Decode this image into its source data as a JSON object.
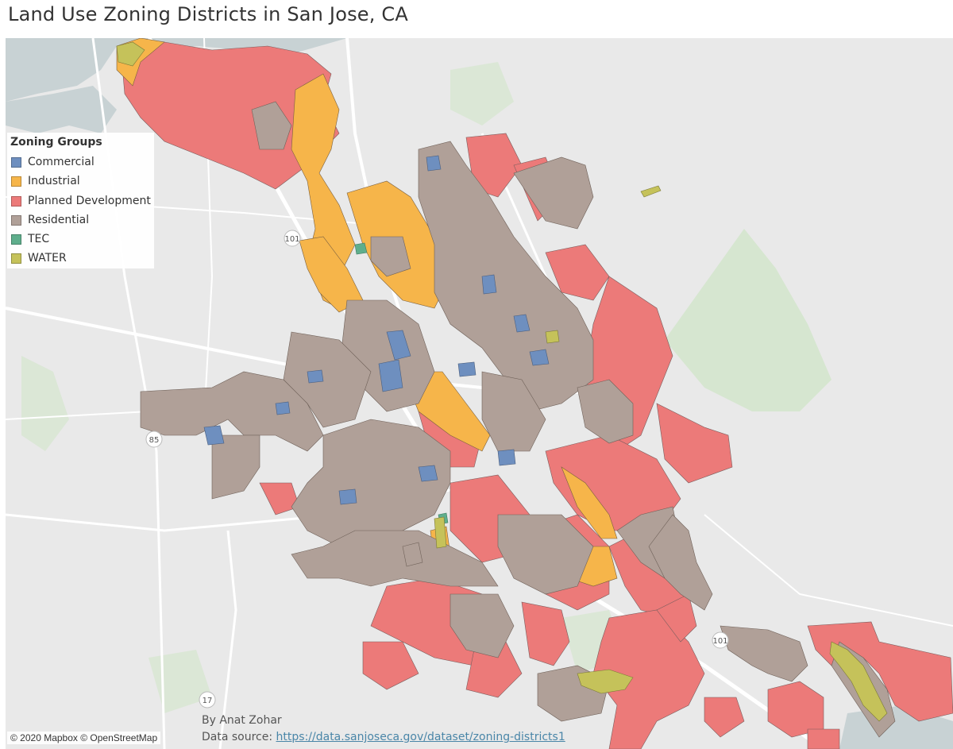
{
  "title": "Land Use Zoning Districts in San Jose, CA",
  "legend": {
    "title": "Zoning Groups",
    "items": [
      {
        "label": "Commercial",
        "color": "#6e8fbf"
      },
      {
        "label": "Industrial",
        "color": "#f6b54a"
      },
      {
        "label": "Planned Development",
        "color": "#ec7a79"
      },
      {
        "label": "Residential",
        "color": "#b0a098"
      },
      {
        "label": "TEC",
        "color": "#5fae8c"
      },
      {
        "label": "WATER",
        "color": "#c5c25a"
      }
    ]
  },
  "map": {
    "base_color": "#e9e9e9",
    "water_color": "#c8d2d4",
    "park_color": "#d6e6d0",
    "road_color": "#ffffff",
    "highway_shields": [
      "101",
      "85",
      "17",
      "101"
    ]
  },
  "attribution": "© 2020 Mapbox © OpenStreetMap",
  "credit": {
    "author": "By Anat Zohar",
    "source_prefix": "Data source: ",
    "source_link": "https://data.sanjoseca.gov/dataset/zoning-districts1"
  }
}
